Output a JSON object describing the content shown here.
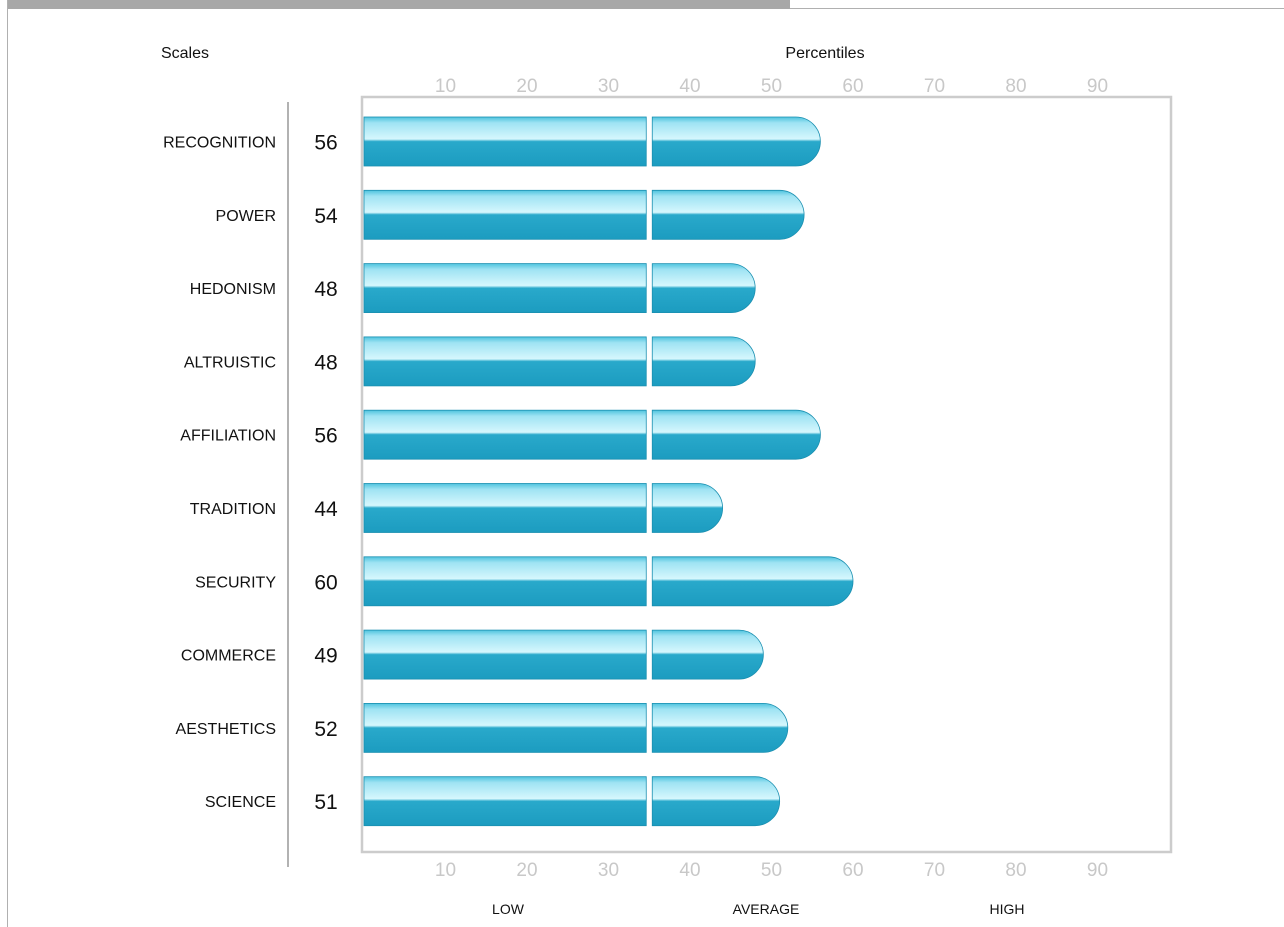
{
  "header": {
    "scales_label": "Scales",
    "percentiles_label": "Percentiles"
  },
  "bands": {
    "low": "LOW",
    "average": "AVERAGE",
    "high": "HIGH"
  },
  "colors": {
    "bar_top": "#bff0fb",
    "bar_bottom": "#1ea3c6",
    "bar_edge": "#1a8fb0",
    "frame": "#cccccc",
    "tick_text": "#c8c8c8"
  },
  "chart_data": {
    "type": "bar",
    "orientation": "horizontal",
    "title": "",
    "xlabel": "Percentiles",
    "ylabel": "Scales",
    "xlim": [
      0,
      100
    ],
    "xticks": [
      10,
      20,
      30,
      40,
      50,
      60,
      70,
      80,
      90
    ],
    "average_band_start": 35,
    "categories": [
      "RECOGNITION",
      "POWER",
      "HEDONISM",
      "ALTRUISTIC",
      "AFFILIATION",
      "TRADITION",
      "SECURITY",
      "COMMERCE",
      "AESTHETICS",
      "SCIENCE"
    ],
    "values": [
      56,
      54,
      48,
      48,
      56,
      44,
      60,
      49,
      52,
      51
    ],
    "grid": false,
    "legend": "none"
  }
}
